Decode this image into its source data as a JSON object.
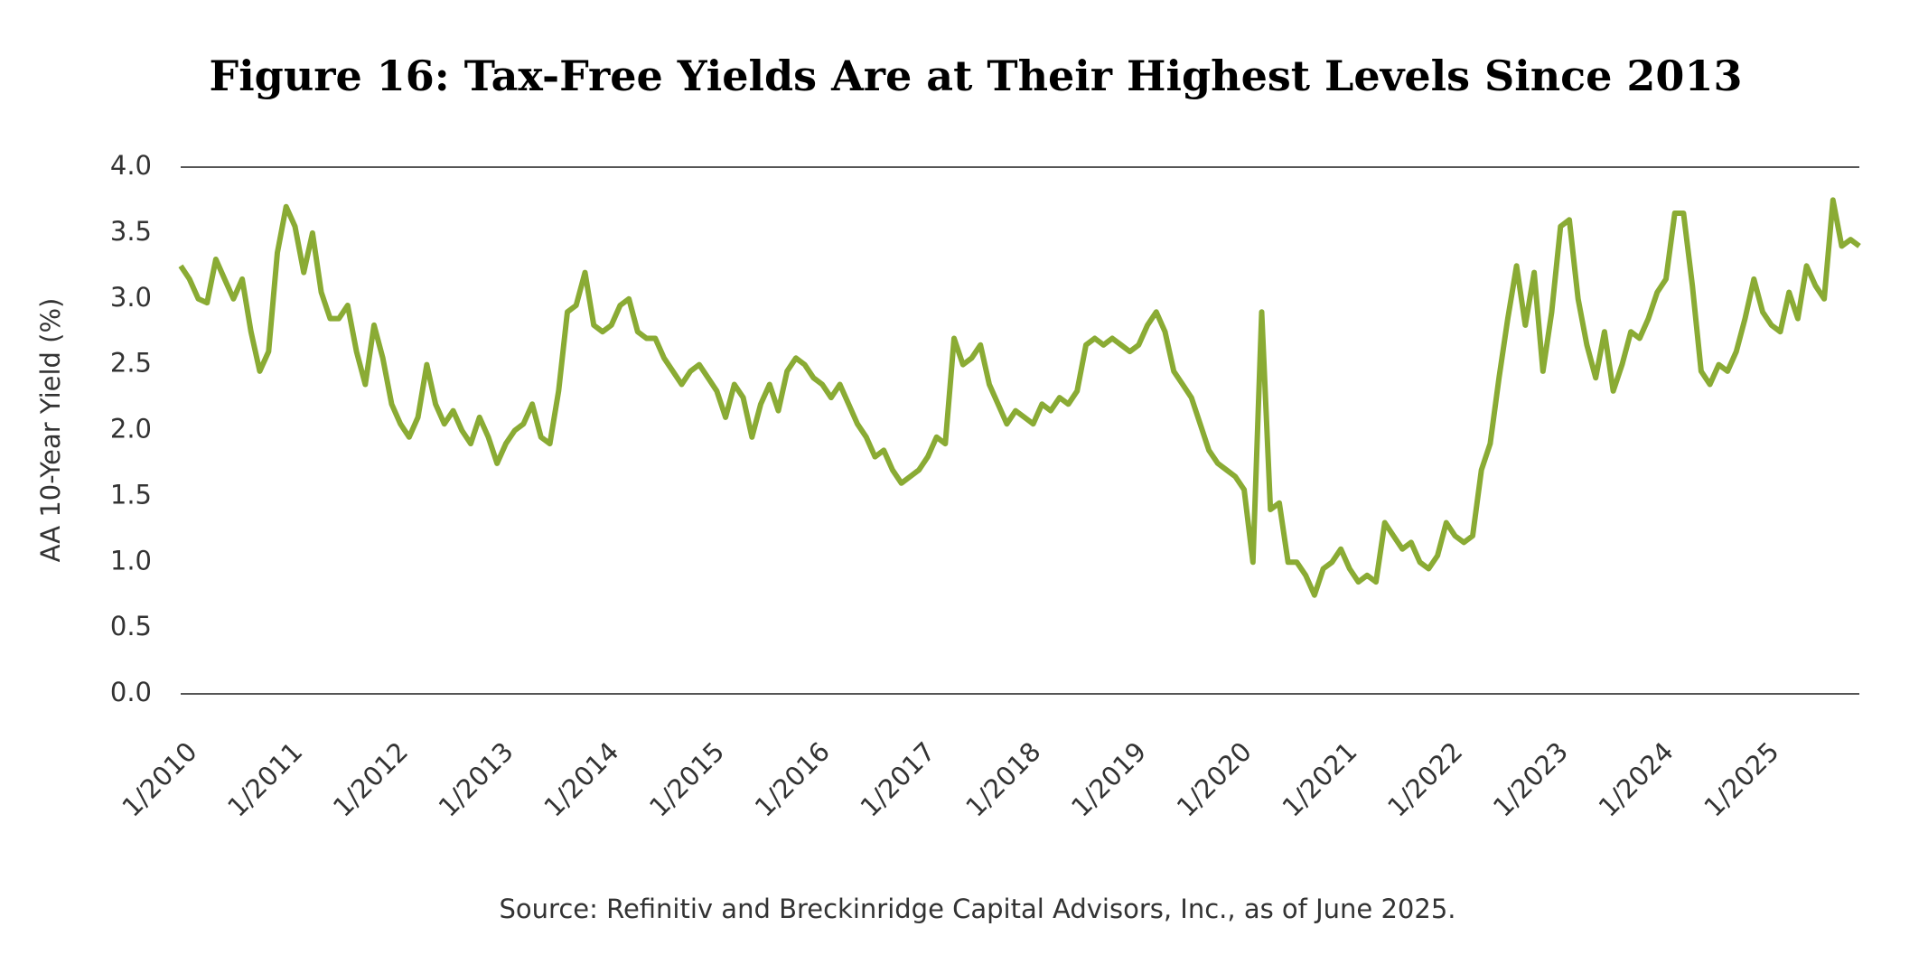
{
  "chart_data": {
    "type": "line",
    "title": "Figure 16: Tax-Free Yields Are at Their Highest Levels Since 2013",
    "y_label": "AA 10-Year Yield (%)",
    "source": "Source: Refinitiv and Breckinridge Capital Advisors, Inc., as of June 2025.",
    "x": [
      "1/2010",
      "2/2010",
      "3/2010",
      "4/2010",
      "5/2010",
      "6/2010",
      "7/2010",
      "8/2010",
      "9/2010",
      "10/2010",
      "11/2010",
      "12/2010",
      "1/2011",
      "2/2011",
      "3/2011",
      "4/2011",
      "5/2011",
      "6/2011",
      "7/2011",
      "8/2011",
      "9/2011",
      "10/2011",
      "11/2011",
      "12/2011",
      "1/2012",
      "2/2012",
      "3/2012",
      "4/2012",
      "5/2012",
      "6/2012",
      "7/2012",
      "8/2012",
      "9/2012",
      "10/2012",
      "11/2012",
      "12/2012",
      "1/2013",
      "2/2013",
      "3/2013",
      "4/2013",
      "5/2013",
      "6/2013",
      "7/2013",
      "8/2013",
      "9/2013",
      "10/2013",
      "11/2013",
      "12/2013",
      "1/2014",
      "2/2014",
      "3/2014",
      "4/2014",
      "5/2014",
      "6/2014",
      "7/2014",
      "8/2014",
      "9/2014",
      "10/2014",
      "11/2014",
      "12/2014",
      "1/2015",
      "2/2015",
      "3/2015",
      "4/2015",
      "5/2015",
      "6/2015",
      "7/2015",
      "8/2015",
      "9/2015",
      "10/2015",
      "11/2015",
      "12/2015",
      "1/2016",
      "2/2016",
      "3/2016",
      "4/2016",
      "5/2016",
      "6/2016",
      "7/2016",
      "8/2016",
      "9/2016",
      "10/2016",
      "11/2016",
      "12/2016",
      "1/2017",
      "2/2017",
      "3/2017",
      "4/2017",
      "5/2017",
      "6/2017",
      "7/2017",
      "8/2017",
      "9/2017",
      "10/2017",
      "11/2017",
      "12/2017",
      "1/2018",
      "2/2018",
      "3/2018",
      "4/2018",
      "5/2018",
      "6/2018",
      "7/2018",
      "8/2018",
      "9/2018",
      "10/2018",
      "11/2018",
      "12/2018",
      "1/2019",
      "2/2019",
      "3/2019",
      "4/2019",
      "5/2019",
      "6/2019",
      "7/2019",
      "8/2019",
      "9/2019",
      "10/2019",
      "11/2019",
      "12/2019",
      "1/2020",
      "2/2020",
      "3/2020",
      "4/2020",
      "5/2020",
      "6/2020",
      "7/2020",
      "8/2020",
      "9/2020",
      "10/2020",
      "11/2020",
      "12/2020",
      "1/2021",
      "2/2021",
      "3/2021",
      "4/2021",
      "5/2021",
      "6/2021",
      "7/2021",
      "8/2021",
      "9/2021",
      "10/2021",
      "11/2021",
      "12/2021",
      "1/2022",
      "2/2022",
      "3/2022",
      "4/2022",
      "5/2022",
      "6/2022",
      "7/2022",
      "8/2022",
      "9/2022",
      "10/2022",
      "11/2022",
      "12/2022",
      "1/2023",
      "2/2023",
      "3/2023",
      "4/2023",
      "5/2023",
      "6/2023",
      "7/2023",
      "8/2023",
      "9/2023",
      "10/2023",
      "11/2023",
      "12/2023",
      "1/2024",
      "2/2024",
      "3/2024",
      "4/2024",
      "5/2024",
      "6/2024",
      "7/2024",
      "8/2024",
      "9/2024",
      "10/2024",
      "11/2024",
      "12/2024",
      "1/2025",
      "2/2025",
      "3/2025",
      "4/2025",
      "5/2025",
      "6/2025",
      "7/2025",
      "8/2025",
      "9/2025",
      "10/2025",
      "11/2025",
      "12/2025"
    ],
    "series": [
      {
        "color": "#8aab34",
        "values": [
          3.25,
          3.15,
          3.0,
          2.97,
          3.3,
          3.15,
          3.0,
          3.15,
          2.75,
          2.45,
          2.6,
          3.35,
          3.7,
          3.55,
          3.2,
          3.5,
          3.05,
          2.85,
          2.85,
          2.95,
          2.6,
          2.35,
          2.8,
          2.55,
          2.2,
          2.05,
          1.95,
          2.1,
          2.5,
          2.2,
          2.05,
          2.15,
          2.0,
          1.9,
          2.1,
          1.95,
          1.75,
          1.9,
          2.0,
          2.05,
          2.2,
          1.95,
          1.9,
          2.3,
          2.9,
          2.95,
          3.2,
          2.8,
          2.75,
          2.8,
          2.95,
          3.0,
          2.75,
          2.7,
          2.7,
          2.55,
          2.45,
          2.35,
          2.45,
          2.5,
          2.4,
          2.3,
          2.1,
          2.35,
          2.25,
          1.95,
          2.2,
          2.35,
          2.15,
          2.45,
          2.55,
          2.5,
          2.4,
          2.35,
          2.25,
          2.35,
          2.2,
          2.05,
          1.95,
          1.8,
          1.85,
          1.7,
          1.6,
          1.65,
          1.7,
          1.8,
          1.95,
          1.9,
          2.7,
          2.5,
          2.55,
          2.65,
          2.35,
          2.2,
          2.05,
          2.15,
          2.1,
          2.05,
          2.2,
          2.15,
          2.25,
          2.2,
          2.3,
          2.65,
          2.7,
          2.65,
          2.7,
          2.65,
          2.6,
          2.65,
          2.8,
          2.9,
          2.75,
          2.45,
          2.35,
          2.25,
          2.05,
          1.85,
          1.75,
          1.7,
          1.65,
          1.55,
          1.0,
          2.9,
          1.4,
          1.45,
          1.0,
          1.0,
          0.9,
          0.75,
          0.95,
          1.0,
          1.1,
          0.95,
          0.85,
          0.9,
          0.85,
          1.3,
          1.2,
          1.1,
          1.15,
          1.0,
          0.95,
          1.05,
          1.3,
          1.2,
          1.15,
          1.2,
          1.7,
          1.9,
          2.4,
          2.85,
          3.25,
          2.8,
          3.2,
          2.45,
          2.9,
          3.55,
          3.6,
          3.0,
          2.65,
          2.4,
          2.75,
          2.3,
          2.5,
          2.75,
          2.7,
          2.85,
          3.05,
          3.15,
          3.65,
          3.65,
          3.1,
          2.45,
          2.35,
          2.5,
          2.45,
          2.6,
          2.85,
          3.15,
          2.9,
          2.8,
          2.75,
          3.05,
          2.85,
          3.25,
          3.1,
          3.0,
          3.75,
          3.4,
          3.45,
          3.4
        ]
      }
    ],
    "ylim": [
      0,
      4
    ],
    "yticks": [
      {
        "value": 0,
        "label": "0.0"
      },
      0.5,
      {
        "value": 1,
        "label": "1.0"
      },
      1.5,
      {
        "value": 2,
        "label": "2.0"
      },
      2.5,
      {
        "value": 3,
        "label": "3.0"
      },
      3.5,
      {
        "value": 4,
        "label": "4.0"
      }
    ],
    "xticks": [
      "1/2010",
      "1/2011",
      "1/2012",
      "1/2013",
      "1/2014",
      "1/2015",
      "1/2016",
      "1/2017",
      "1/2018",
      "1/2019",
      "1/2020",
      "1/2021",
      "1/2022",
      "1/2023",
      "1/2024",
      "1/2025"
    ],
    "grid": false
  }
}
